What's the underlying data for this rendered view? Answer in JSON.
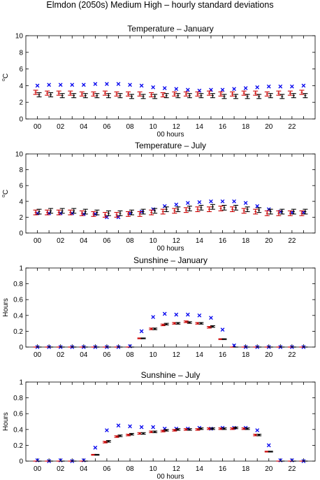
{
  "figure": {
    "title": "Elmdon (2050s) Medium High – hourly standard deviations"
  },
  "colors": {
    "model_series": "#cc0000",
    "observed_mean": "#000000",
    "observed_sd": "#0000ee"
  },
  "chart_data": [
    {
      "type": "scatter",
      "title": "Temperature – January",
      "xlabel": "00 hours",
      "ylabel": "°C",
      "ylabel_base": "C",
      "ylabel_super": "o",
      "ylim": [
        0,
        10
      ],
      "yticks": [
        0,
        2,
        4,
        6,
        8,
        10
      ],
      "xlim": [
        -1,
        24
      ],
      "xticks": [
        "00",
        "02",
        "04",
        "06",
        "08",
        "10",
        "12",
        "14",
        "16",
        "18",
        "20",
        "22"
      ],
      "x": [
        0,
        1,
        2,
        3,
        4,
        5,
        6,
        7,
        8,
        9,
        10,
        11,
        12,
        13,
        14,
        15,
        16,
        17,
        18,
        19,
        20,
        21,
        22,
        23
      ],
      "series": [
        {
          "marker": "cross",
          "color": "#0000ee",
          "values": [
            4.0,
            4.1,
            4.1,
            4.1,
            4.1,
            4.2,
            4.2,
            4.2,
            4.1,
            4.0,
            3.8,
            3.7,
            3.6,
            3.5,
            3.4,
            3.5,
            3.5,
            3.6,
            3.7,
            3.8,
            3.9,
            3.9,
            3.9,
            4.0
          ]
        },
        {
          "marker": "errorbar",
          "color": "#cc0000",
          "offset": -0.15,
          "values": [
            3.2,
            3.1,
            3.1,
            3.1,
            3.0,
            3.0,
            3.1,
            3.0,
            3.0,
            3.0,
            2.9,
            2.9,
            3.0,
            3.0,
            3.0,
            3.1,
            3.0,
            3.0,
            3.1,
            3.1,
            3.0,
            3.1,
            3.1,
            3.2
          ],
          "err": [
            0.25,
            0.25,
            0.25,
            0.25,
            0.25,
            0.25,
            0.25,
            0.25,
            0.25,
            0.25,
            0.25,
            0.25,
            0.25,
            0.25,
            0.25,
            0.25,
            0.25,
            0.25,
            0.25,
            0.25,
            0.25,
            0.25,
            0.25,
            0.25
          ]
        },
        {
          "marker": "errorbar",
          "color": "#000000",
          "offset": 0.15,
          "values": [
            2.9,
            2.9,
            2.8,
            2.8,
            2.8,
            2.8,
            2.8,
            2.8,
            2.7,
            2.7,
            2.7,
            2.8,
            2.8,
            2.8,
            2.8,
            2.8,
            2.7,
            2.7,
            2.7,
            2.7,
            2.8,
            2.7,
            2.8,
            2.8
          ],
          "err": [
            0.25,
            0.25,
            0.25,
            0.25,
            0.25,
            0.25,
            0.25,
            0.25,
            0.25,
            0.25,
            0.25,
            0.25,
            0.25,
            0.25,
            0.25,
            0.25,
            0.25,
            0.25,
            0.25,
            0.25,
            0.25,
            0.25,
            0.25,
            0.25
          ]
        }
      ]
    },
    {
      "type": "scatter",
      "title": "Temperature – July",
      "xlabel": "00 hours",
      "ylabel": "°C",
      "ylabel_base": "C",
      "ylabel_super": "o",
      "ylim": [
        0,
        10
      ],
      "yticks": [
        0,
        2,
        4,
        6,
        8,
        10
      ],
      "xlim": [
        -1,
        24
      ],
      "xticks": [
        "00",
        "02",
        "04",
        "06",
        "08",
        "10",
        "12",
        "14",
        "16",
        "18",
        "20",
        "22"
      ],
      "x": [
        0,
        1,
        2,
        3,
        4,
        5,
        6,
        7,
        8,
        9,
        10,
        11,
        12,
        13,
        14,
        15,
        16,
        17,
        18,
        19,
        20,
        21,
        22,
        23
      ],
      "series": [
        {
          "marker": "cross",
          "color": "#0000ee",
          "values": [
            2.5,
            2.5,
            2.5,
            2.5,
            2.4,
            2.4,
            2.0,
            2.0,
            2.5,
            2.7,
            3.0,
            3.4,
            3.6,
            3.8,
            3.9,
            4.0,
            4.0,
            4.0,
            3.8,
            3.4,
            3.0,
            2.7,
            2.6,
            2.6
          ]
        },
        {
          "marker": "errorbar",
          "color": "#cc0000",
          "offset": -0.15,
          "values": [
            2.6,
            2.6,
            2.6,
            2.6,
            2.5,
            2.4,
            2.3,
            2.3,
            2.4,
            2.4,
            2.6,
            2.7,
            2.8,
            2.9,
            3.0,
            3.0,
            3.1,
            3.0,
            2.8,
            2.7,
            2.5,
            2.5,
            2.5,
            2.5
          ],
          "err": [
            0.3,
            0.3,
            0.3,
            0.3,
            0.3,
            0.3,
            0.3,
            0.3,
            0.3,
            0.3,
            0.3,
            0.3,
            0.3,
            0.3,
            0.3,
            0.3,
            0.3,
            0.3,
            0.3,
            0.3,
            0.3,
            0.3,
            0.3,
            0.3
          ]
        },
        {
          "marker": "errorbar",
          "color": "#000000",
          "offset": 0.15,
          "values": [
            2.7,
            2.8,
            2.8,
            2.8,
            2.7,
            2.6,
            2.5,
            2.5,
            2.6,
            2.7,
            2.8,
            3.0,
            3.0,
            3.1,
            3.2,
            3.3,
            3.2,
            3.2,
            3.0,
            2.9,
            2.7,
            2.7,
            2.7,
            2.7
          ],
          "err": [
            0.3,
            0.3,
            0.3,
            0.3,
            0.3,
            0.3,
            0.3,
            0.3,
            0.3,
            0.3,
            0.3,
            0.3,
            0.3,
            0.3,
            0.3,
            0.3,
            0.3,
            0.3,
            0.3,
            0.3,
            0.3,
            0.3,
            0.3,
            0.3
          ]
        }
      ]
    },
    {
      "type": "scatter",
      "title": "Sunshine – January",
      "xlabel": "",
      "ylabel": "Hours",
      "ylim": [
        0,
        1
      ],
      "yticks": [
        0,
        0.2,
        0.4,
        0.6,
        0.8,
        1
      ],
      "xlim": [
        -1,
        24
      ],
      "xticks": [
        "00",
        "02",
        "04",
        "06",
        "08",
        "10",
        "12",
        "14",
        "16",
        "18",
        "20",
        "22"
      ],
      "x": [
        0,
        1,
        2,
        3,
        4,
        5,
        6,
        7,
        8,
        9,
        10,
        11,
        12,
        13,
        14,
        15,
        16,
        17,
        18,
        19,
        20,
        21,
        22,
        23
      ],
      "series": [
        {
          "marker": "cross",
          "color": "#0000ee",
          "values": [
            0,
            0,
            0,
            0,
            0,
            0,
            0,
            0,
            0.01,
            0.2,
            0.38,
            0.42,
            0.41,
            0.41,
            0.4,
            0.37,
            0.22,
            0.02,
            0,
            0,
            0,
            0,
            0,
            0
          ]
        },
        {
          "marker": "errorbar",
          "color": "#cc0000",
          "offset": -0.15,
          "values": [
            0,
            0,
            0,
            0,
            0,
            0,
            0,
            0,
            0,
            0.11,
            0.23,
            0.28,
            0.3,
            0.32,
            0.3,
            0.25,
            0.1,
            0,
            0,
            0,
            0,
            0,
            0,
            0
          ],
          "err": [
            0,
            0,
            0,
            0,
            0,
            0,
            0,
            0,
            0,
            0.005,
            0.01,
            0.01,
            0.01,
            0.01,
            0.01,
            0.01,
            0.005,
            0,
            0,
            0,
            0,
            0,
            0,
            0
          ]
        },
        {
          "marker": "errorbar",
          "color": "#000000",
          "offset": 0.15,
          "values": [
            0,
            0,
            0,
            0,
            0,
            0,
            0,
            0,
            0,
            0.11,
            0.23,
            0.29,
            0.3,
            0.31,
            0.3,
            0.26,
            0.1,
            0,
            0,
            0,
            0,
            0,
            0,
            0
          ],
          "err": [
            0,
            0,
            0,
            0,
            0,
            0,
            0,
            0,
            0,
            0.005,
            0.01,
            0.01,
            0.01,
            0.01,
            0.01,
            0.01,
            0.005,
            0,
            0,
            0,
            0,
            0,
            0,
            0
          ]
        }
      ]
    },
    {
      "type": "scatter",
      "title": "Sunshine – July",
      "xlabel": "00 hours",
      "ylabel": "Hours",
      "ylim": [
        0,
        1
      ],
      "yticks": [
        0,
        0.2,
        0.4,
        0.6,
        0.8,
        1
      ],
      "xlim": [
        -1,
        24
      ],
      "xticks": [
        "00",
        "02",
        "04",
        "06",
        "08",
        "10",
        "12",
        "14",
        "16",
        "18",
        "20",
        "22"
      ],
      "x": [
        0,
        1,
        2,
        3,
        4,
        5,
        6,
        7,
        8,
        9,
        10,
        11,
        12,
        13,
        14,
        15,
        16,
        17,
        18,
        19,
        20,
        21,
        22,
        23
      ],
      "series": [
        {
          "marker": "cross",
          "color": "#0000ee",
          "values": [
            0.01,
            0,
            0.01,
            0,
            0.01,
            0.17,
            0.39,
            0.45,
            0.44,
            0.43,
            0.43,
            0.41,
            0.41,
            0.41,
            0.42,
            0.41,
            0.42,
            0.42,
            0.42,
            0.39,
            0.2,
            0.01,
            0.01,
            0
          ]
        },
        {
          "marker": "errorbar",
          "color": "#cc0000",
          "offset": -0.15,
          "values": [
            0,
            0,
            0,
            0,
            0,
            0.08,
            0.24,
            0.31,
            0.33,
            0.35,
            0.37,
            0.38,
            0.39,
            0.4,
            0.4,
            0.41,
            0.41,
            0.41,
            0.41,
            0.33,
            0.12,
            0,
            0,
            0
          ],
          "err": [
            0,
            0,
            0,
            0,
            0,
            0.005,
            0.01,
            0.01,
            0.01,
            0.01,
            0.01,
            0.01,
            0.01,
            0.01,
            0.01,
            0.01,
            0.01,
            0.01,
            0.01,
            0.01,
            0.005,
            0,
            0,
            0
          ]
        },
        {
          "marker": "errorbar",
          "color": "#000000",
          "offset": 0.15,
          "values": [
            0,
            0,
            0,
            0,
            0,
            0.08,
            0.25,
            0.32,
            0.34,
            0.35,
            0.37,
            0.39,
            0.4,
            0.4,
            0.41,
            0.41,
            0.41,
            0.42,
            0.41,
            0.33,
            0.12,
            0,
            0,
            0
          ],
          "err": [
            0,
            0,
            0,
            0,
            0,
            0.005,
            0.01,
            0.01,
            0.01,
            0.01,
            0.01,
            0.01,
            0.01,
            0.01,
            0.01,
            0.01,
            0.01,
            0.01,
            0.01,
            0.01,
            0.005,
            0,
            0,
            0
          ]
        }
      ]
    }
  ]
}
